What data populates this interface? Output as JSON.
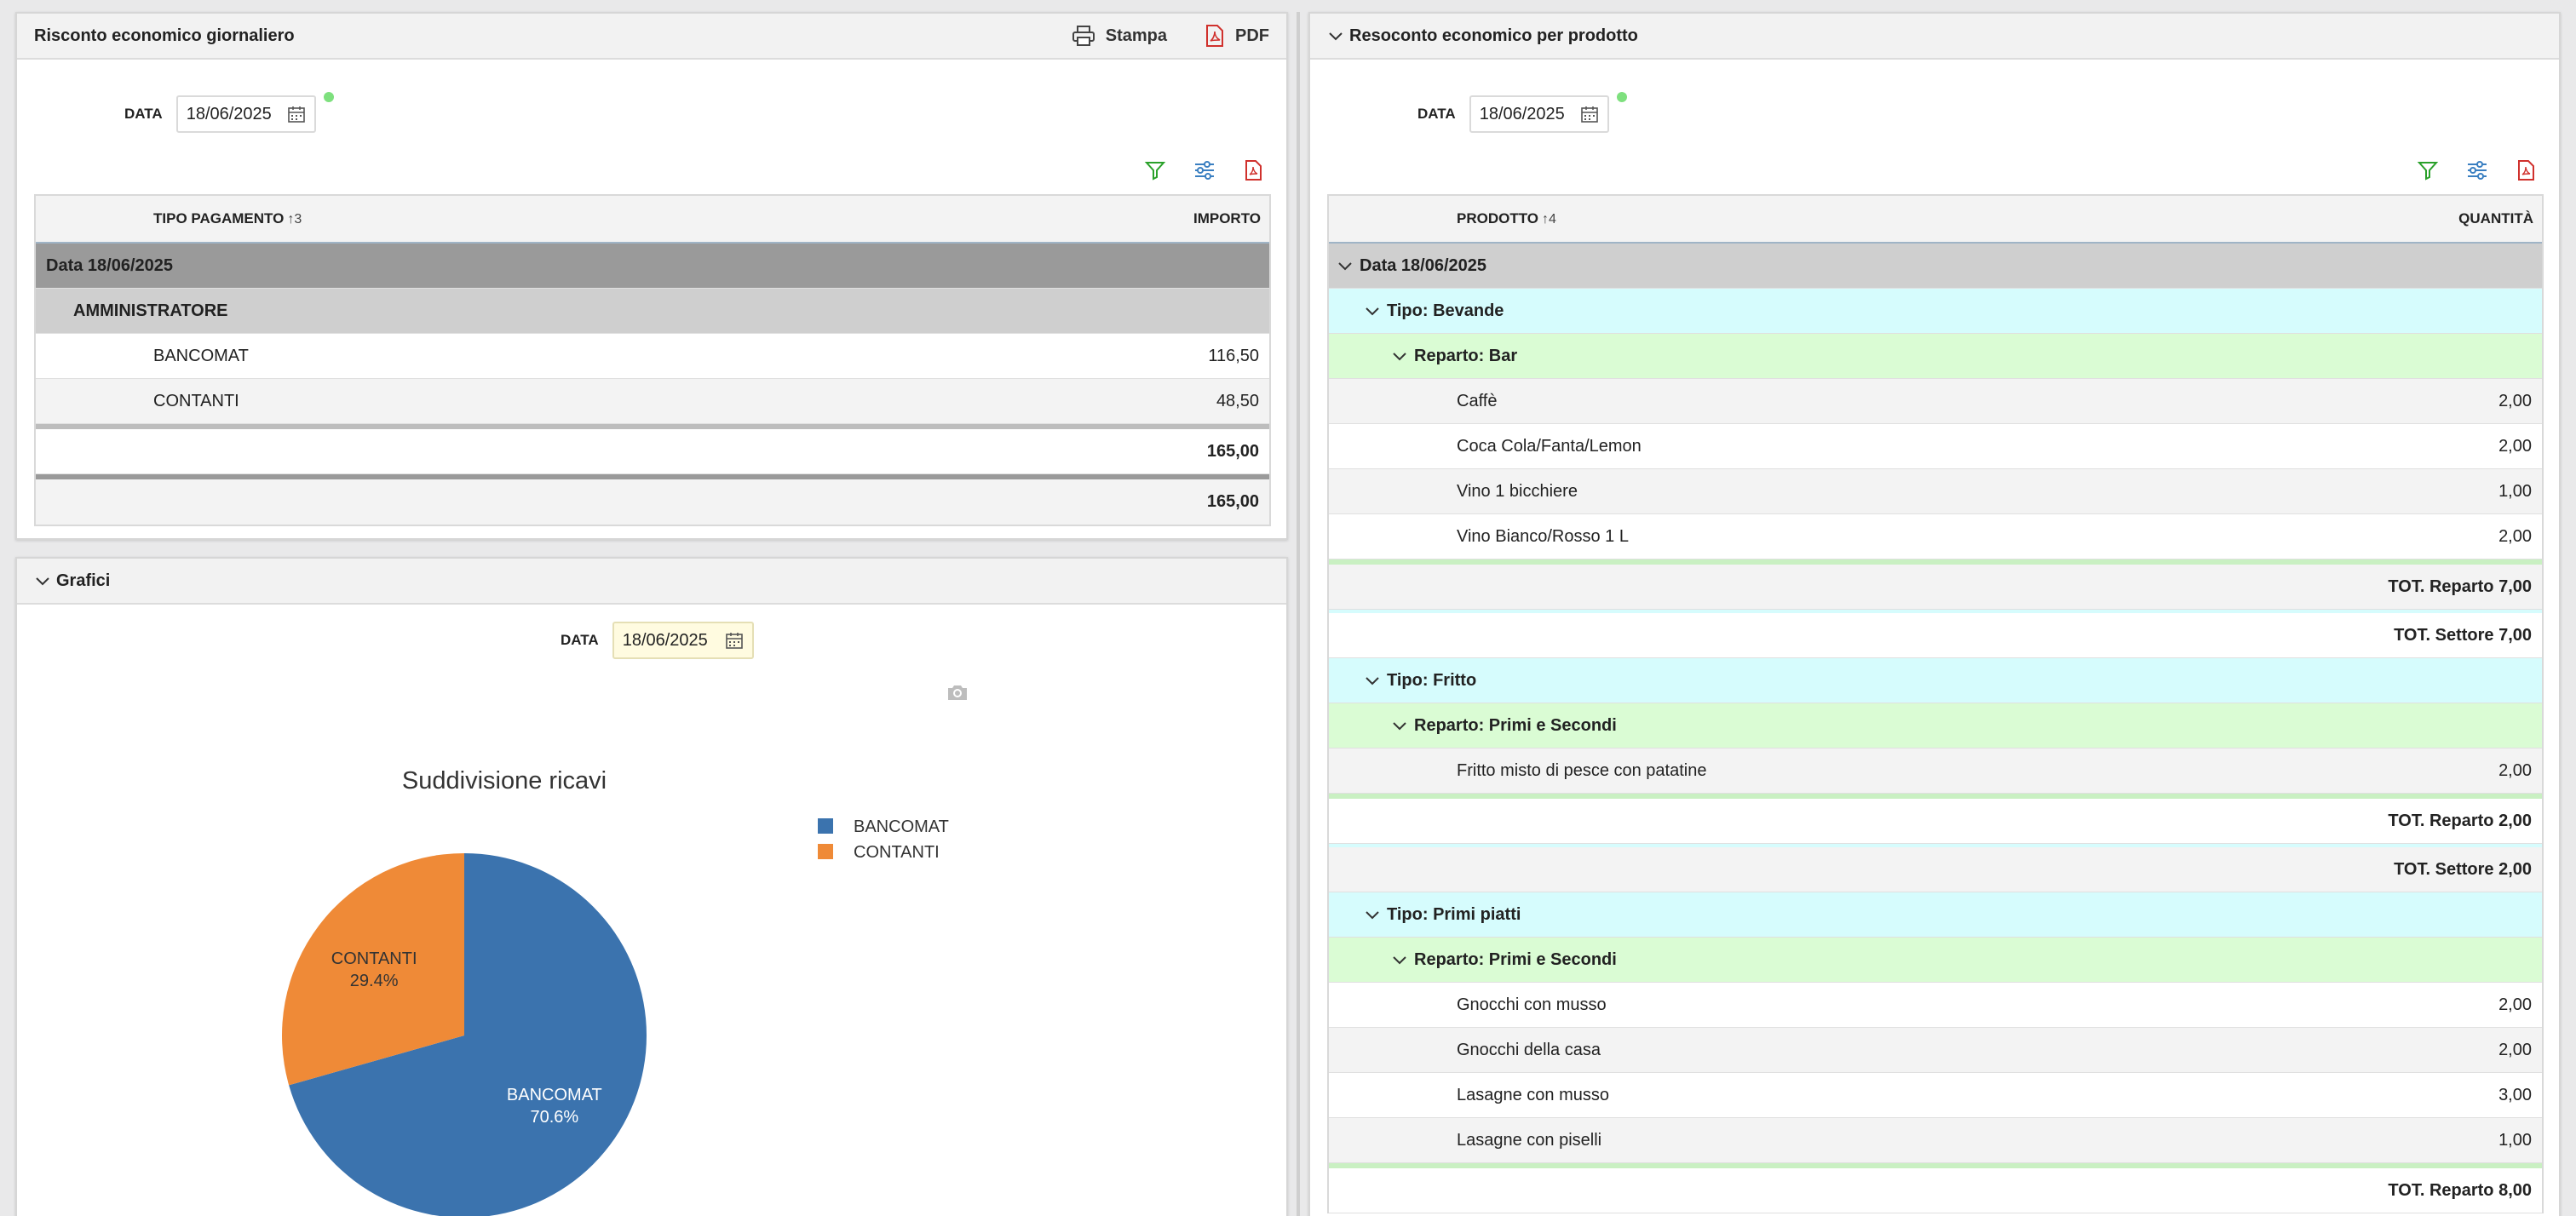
{
  "left_panel": {
    "title": "Risconto economico giornaliero",
    "print_label": "Stampa",
    "pdf_label": "PDF",
    "date_label": "DATA",
    "date_value": "18/06/2025",
    "grid": {
      "col_payment": "TIPO PAGAMENTO",
      "col_payment_sort": "↑3",
      "col_amount": "IMPORTO",
      "group_date": "Data 18/06/2025",
      "group_user": "AMMINISTRATORE",
      "rows": [
        {
          "label": "BANCOMAT",
          "value": "116,50"
        },
        {
          "label": "CONTANTI",
          "value": "48,50"
        }
      ],
      "subtotal": "165,00",
      "total": "165,00"
    }
  },
  "chart_panel": {
    "title": "Grafici",
    "date_label": "DATA",
    "date_value": "18/06/2025"
  },
  "chart_data": {
    "type": "pie",
    "title": "Suddivisione ricavi",
    "labels": [
      "BANCOMAT",
      "CONTANTI"
    ],
    "values": [
      70.6,
      29.4
    ],
    "value_labels": [
      "70.6%",
      "29.4%"
    ],
    "colors": [
      "#3b73ae",
      "#ef8a37"
    ],
    "legend": "top-right"
  },
  "right_panel": {
    "title": "Resoconto economico per prodotto",
    "date_label": "DATA",
    "date_value": "18/06/2025",
    "grid": {
      "col_product": "PRODOTTO",
      "col_product_sort": "↑4",
      "col_qty": "QUANTITÀ",
      "group_date": "Data 18/06/2025",
      "types": [
        {
          "label": "Tipo: Bevande",
          "reparto": "Reparto: Bar",
          "items": [
            {
              "label": "Caffè",
              "value": "2,00"
            },
            {
              "label": "Coca Cola/Fanta/Lemon",
              "value": "2,00"
            },
            {
              "label": "Vino 1 bicchiere",
              "value": "1,00"
            },
            {
              "label": "Vino Bianco/Rosso 1 L",
              "value": "2,00"
            }
          ],
          "tot_reparto": "TOT. Reparto 7,00",
          "tot_settore": "TOT. Settore 7,00"
        },
        {
          "label": "Tipo: Fritto",
          "reparto": "Reparto: Primi e Secondi",
          "items": [
            {
              "label": "Fritto misto di pesce con patatine",
              "value": "2,00"
            }
          ],
          "tot_reparto": "TOT. Reparto 2,00",
          "tot_settore": "TOT. Settore 2,00"
        },
        {
          "label": "Tipo: Primi piatti",
          "reparto": "Reparto: Primi e Secondi",
          "items": [
            {
              "label": "Gnocchi con musso",
              "value": "2,00"
            },
            {
              "label": "Gnocchi della casa",
              "value": "2,00"
            },
            {
              "label": "Lasagne con musso",
              "value": "3,00"
            },
            {
              "label": "Lasagne con piselli",
              "value": "1,00"
            }
          ],
          "tot_reparto": "TOT. Reparto 8,00"
        }
      ]
    }
  }
}
